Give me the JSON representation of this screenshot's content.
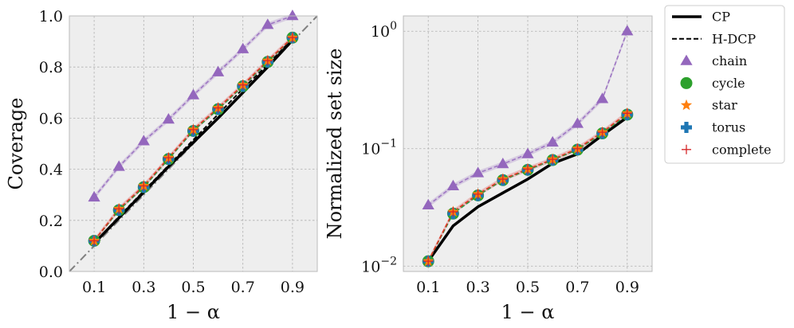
{
  "chart_data": [
    {
      "type": "line",
      "title": "",
      "xlabel": "1 − α",
      "ylabel": "Coverage",
      "xlim": [
        0.0,
        1.0
      ],
      "ylim": [
        0.0,
        1.0
      ],
      "grid": true,
      "x_ticks": [
        0.1,
        0.3,
        0.5,
        0.7,
        0.9
      ],
      "y_ticks": [
        0.0,
        0.2,
        0.4,
        0.6,
        0.8,
        1.0
      ],
      "x_tick_labels": [
        "0.1",
        "0.3",
        "0.5",
        "0.7",
        "0.9"
      ],
      "y_tick_labels": [
        "0.0",
        "0.2",
        "0.4",
        "0.6",
        "0.8",
        "1.0"
      ],
      "x": [
        0.1,
        0.2,
        0.3,
        0.4,
        0.5,
        0.6,
        0.7,
        0.8,
        0.9
      ],
      "series": [
        {
          "name": "CP",
          "values": [
            0.11,
            0.21,
            0.31,
            0.41,
            0.505,
            0.6,
            0.7,
            0.8,
            0.905
          ]
        },
        {
          "name": "H-DCP",
          "values": [
            0.11,
            0.215,
            0.315,
            0.415,
            0.515,
            0.615,
            0.715,
            0.81,
            0.91
          ]
        },
        {
          "name": "chain",
          "values": [
            0.29,
            0.41,
            0.51,
            0.595,
            0.69,
            0.78,
            0.87,
            0.965,
            1.0
          ]
        },
        {
          "name": "cycle",
          "values": [
            0.12,
            0.24,
            0.33,
            0.44,
            0.55,
            0.635,
            0.725,
            0.82,
            0.915
          ]
        },
        {
          "name": "star",
          "values": [
            0.12,
            0.245,
            0.335,
            0.445,
            0.555,
            0.64,
            0.73,
            0.825,
            0.915
          ]
        },
        {
          "name": "torus",
          "values": [
            0.12,
            0.24,
            0.33,
            0.44,
            0.55,
            0.635,
            0.725,
            0.82,
            0.915
          ]
        },
        {
          "name": "complete",
          "values": [
            0.12,
            0.245,
            0.335,
            0.445,
            0.555,
            0.64,
            0.73,
            0.825,
            0.915
          ]
        }
      ],
      "reference_line": "y = x"
    },
    {
      "type": "line",
      "title": "",
      "xlabel": "1 − α",
      "ylabel": "Normalized set size",
      "yscale": "log",
      "xlim": [
        0.0,
        1.0
      ],
      "ylim": [
        0.009,
        1.35
      ],
      "grid": true,
      "x_ticks": [
        0.1,
        0.3,
        0.5,
        0.7,
        0.9
      ],
      "x_tick_labels": [
        "0.1",
        "0.3",
        "0.5",
        "0.7",
        "0.9"
      ],
      "y_ticks": [
        0.01,
        0.1,
        1.0
      ],
      "y_tick_labels": [
        [
          "10",
          "−2"
        ],
        [
          "10",
          "−1"
        ],
        [
          "10",
          "0"
        ]
      ],
      "x": [
        0.1,
        0.2,
        0.3,
        0.4,
        0.5,
        0.6,
        0.7,
        0.8,
        0.9
      ],
      "series": [
        {
          "name": "CP",
          "values": [
            0.011,
            0.022,
            0.032,
            0.042,
            0.055,
            0.075,
            0.09,
            0.13,
            0.185
          ]
        },
        {
          "name": "H-DCP",
          "values": [
            0.011,
            0.022,
            0.032,
            0.042,
            0.055,
            0.075,
            0.09,
            0.13,
            0.185
          ]
        },
        {
          "name": "chain",
          "values": [
            0.033,
            0.048,
            0.062,
            0.074,
            0.09,
            0.113,
            0.163,
            0.265,
            1.0
          ]
        },
        {
          "name": "cycle",
          "values": [
            0.011,
            0.028,
            0.04,
            0.054,
            0.066,
            0.08,
            0.098,
            0.135,
            0.195
          ]
        },
        {
          "name": "star",
          "values": [
            0.011,
            0.029,
            0.041,
            0.055,
            0.067,
            0.081,
            0.1,
            0.138,
            0.2
          ]
        },
        {
          "name": "torus",
          "values": [
            0.011,
            0.028,
            0.04,
            0.054,
            0.066,
            0.08,
            0.098,
            0.135,
            0.195
          ]
        },
        {
          "name": "complete",
          "values": [
            0.011,
            0.029,
            0.041,
            0.055,
            0.067,
            0.081,
            0.1,
            0.138,
            0.2
          ]
        }
      ]
    }
  ],
  "legend": {
    "placement": "outside-right-top",
    "entries": [
      {
        "name": "CP",
        "style": "line-solid",
        "color": "#000000"
      },
      {
        "name": "H-DCP",
        "style": "line-dashed",
        "color": "#000000"
      },
      {
        "name": "chain",
        "style": "triangle",
        "color": "#9467bd"
      },
      {
        "name": "cycle",
        "style": "circle",
        "color": "#2ca02c"
      },
      {
        "name": "star",
        "style": "star",
        "color": "#ff7f0e"
      },
      {
        "name": "torus",
        "style": "plus-thick",
        "color": "#1f77b4"
      },
      {
        "name": "complete",
        "style": "plus-thin",
        "color": "#d62728"
      }
    ]
  },
  "colors": {
    "background": "#eeeeee",
    "grid": "#b0b0b0",
    "chain": "#9467bd",
    "cycle": "#2ca02c",
    "star": "#ff7f0e",
    "torus": "#1f77b4",
    "complete": "#d62728",
    "cp": "#000000",
    "reference": "#808080"
  }
}
